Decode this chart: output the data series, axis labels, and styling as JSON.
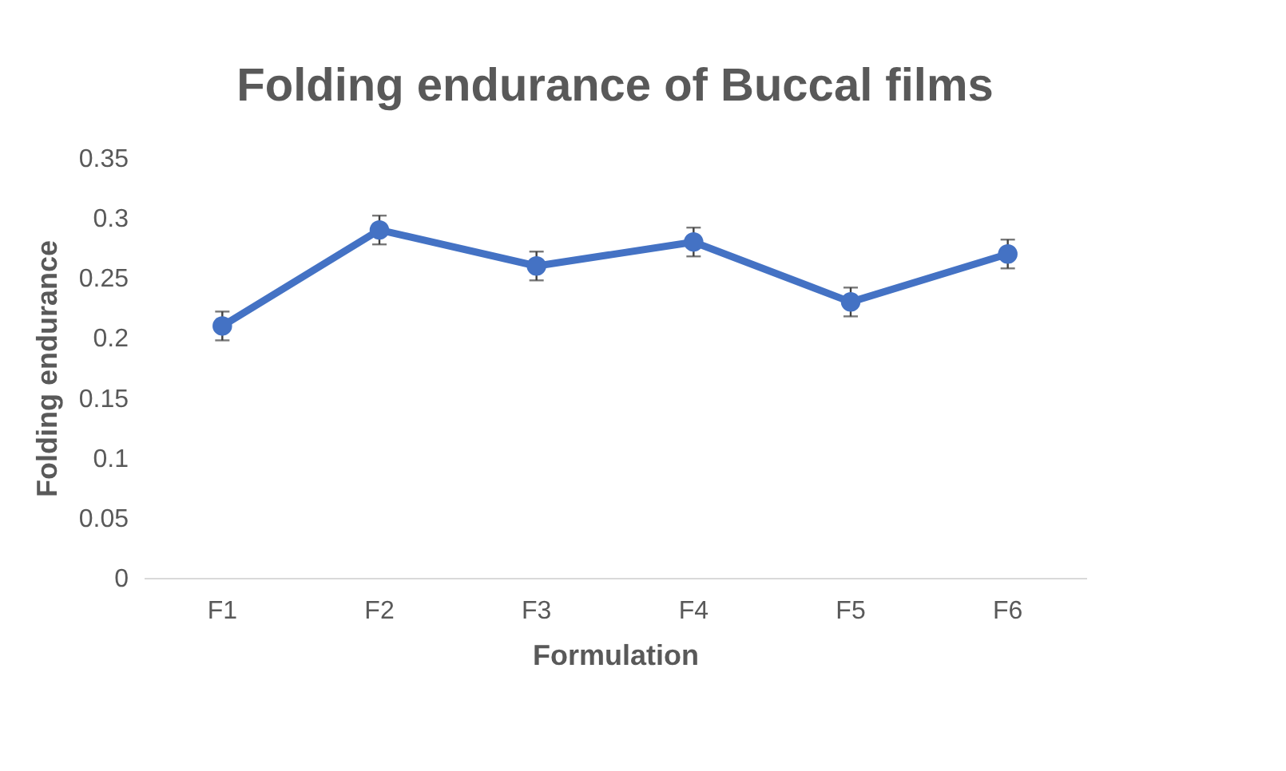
{
  "chart_data": {
    "type": "line",
    "title": "Folding endurance of Buccal films",
    "xlabel": "Formulation",
    "ylabel": "Folding endurance",
    "categories": [
      "F1",
      "F2",
      "F3",
      "F4",
      "F5",
      "F6"
    ],
    "series": [
      {
        "color": "#4472c4",
        "values": [
          0.21,
          0.29,
          0.26,
          0.28,
          0.23,
          0.27
        ],
        "errors": [
          0.012,
          0.012,
          0.012,
          0.012,
          0.012,
          0.012
        ]
      }
    ],
    "ylim": [
      0,
      0.35
    ],
    "yticks": [
      0,
      0.05,
      0.1,
      0.15,
      0.2,
      0.25,
      0.3,
      0.35
    ],
    "grid": false,
    "marker": "circle",
    "line_style": "solid"
  }
}
